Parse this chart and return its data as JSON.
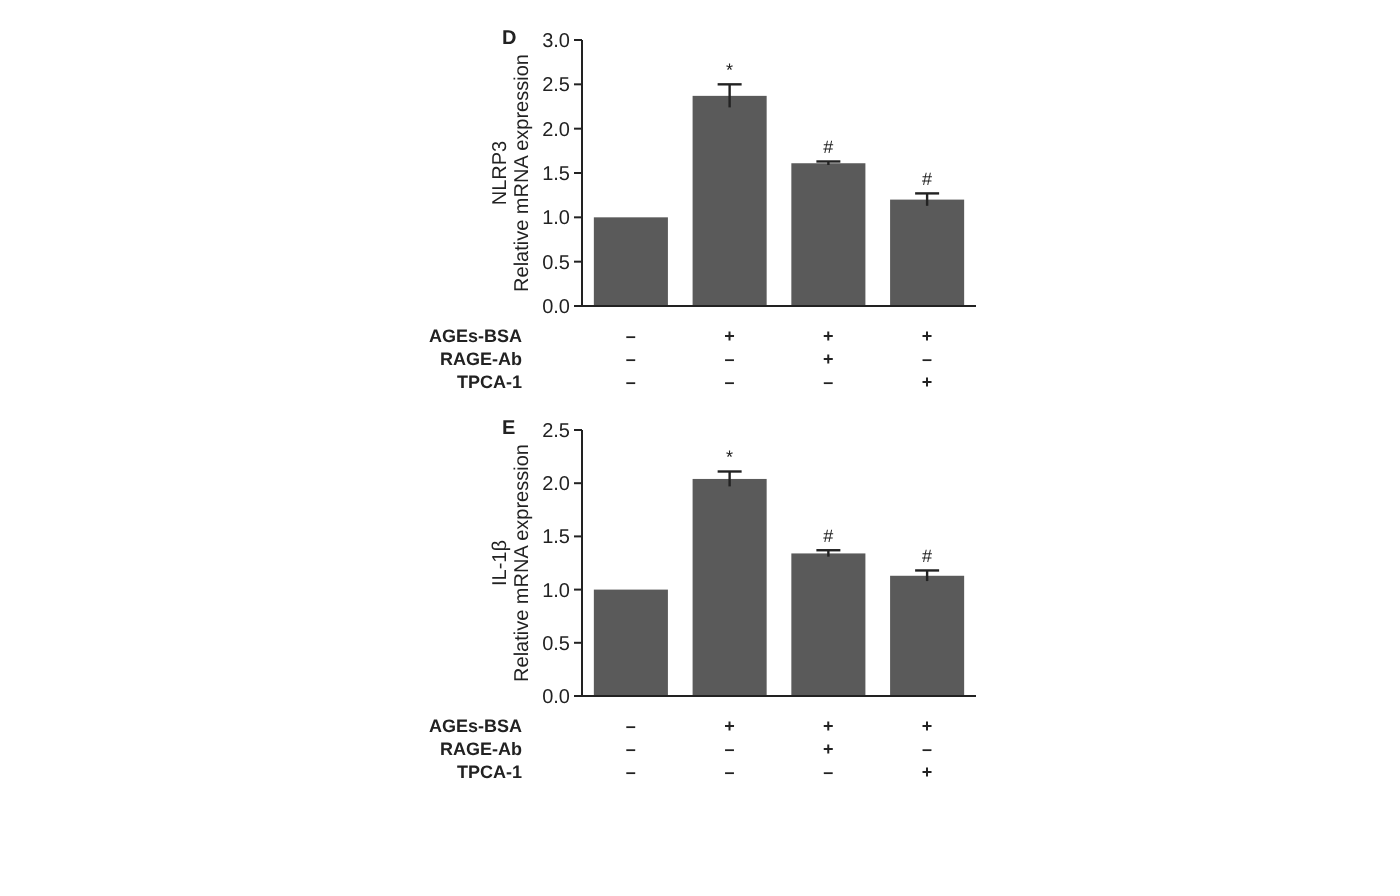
{
  "chart_data": [
    {
      "type": "bar",
      "ylabel": "NLRP3\nRelative mRNA expression",
      "categories": [
        null,
        null,
        null,
        null
      ],
      "values": [
        1.0,
        2.37,
        1.61,
        1.2
      ],
      "errors": [
        null,
        0.13,
        0.02,
        0.07
      ],
      "value_labels": [
        null,
        "*",
        "#",
        "#"
      ],
      "color": "#5a5a5a",
      "ylim": [
        0,
        3
      ],
      "yticks": [
        {
          "value": 0,
          "label": "0.0"
        },
        0.5,
        {
          "value": 1,
          "label": "1.0"
        },
        1.5,
        {
          "value": 2,
          "label": "2.0"
        },
        2.5,
        {
          "value": 3,
          "label": "3.0"
        }
      ],
      "grid": false,
      "annotations": [
        "D",
        "AGEs-BSA",
        "–",
        "+",
        "+",
        "+",
        "RAGE-Ab",
        "–",
        "–",
        "+",
        "–",
        "TPCA-1",
        "–",
        "–",
        "–",
        "+"
      ]
    },
    {
      "type": "bar",
      "ylabel": "IL-1β\nRelative mRNA expression",
      "categories": [
        null,
        null,
        null,
        null
      ],
      "values": [
        1.0,
        2.04,
        1.34,
        1.13
      ],
      "errors": [
        null,
        0.07,
        0.03,
        0.05
      ],
      "value_labels": [
        null,
        "*",
        "#",
        "#"
      ],
      "color": "#5a5a5a",
      "ylim": [
        0,
        2.5
      ],
      "yticks": [
        {
          "value": 0,
          "label": "0.0"
        },
        0.5,
        {
          "value": 1,
          "label": "1.0"
        },
        1.5,
        {
          "value": 2,
          "label": "2.0"
        },
        2.5
      ],
      "grid": false,
      "annotations": [
        "E",
        "AGEs-BSA",
        "–",
        "+",
        "+",
        "+",
        "RAGE-Ab",
        "–",
        "–",
        "+",
        "–",
        "TPCA-1",
        "–",
        "–",
        "–",
        "+"
      ]
    }
  ]
}
